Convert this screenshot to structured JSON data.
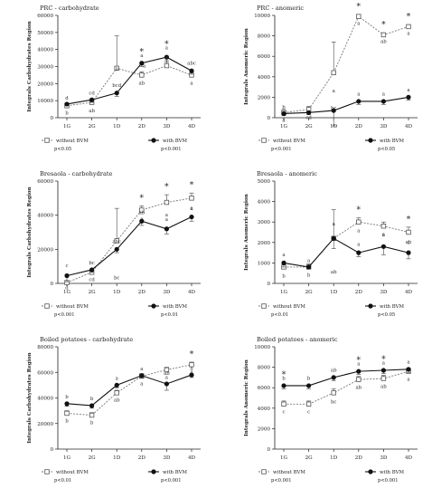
{
  "legend": {
    "without": "without BVM",
    "with": "with BVM"
  },
  "chart_data": [
    {
      "type": "line",
      "title": "PRC - carbohydrate",
      "ylabel": "Integrals Carbohydrates Region",
      "categories": [
        "1G",
        "2G",
        "1D",
        "2D",
        "3D",
        "4D"
      ],
      "ylim": [
        0,
        60000
      ],
      "yticks": [
        0,
        10000,
        20000,
        30000,
        40000,
        50000,
        60000
      ],
      "ytick_labels": [
        "0",
        "10000",
        "20000",
        "30000",
        "40000",
        "50000",
        "60000"
      ],
      "grid": false,
      "series": [
        {
          "name": "without BVM",
          "values": [
            7000,
            9000,
            29000,
            25000,
            30500,
            25000
          ],
          "err": [
            1500,
            2000,
            19000,
            2000,
            3000,
            2000
          ],
          "letters": [
            "b",
            "ab",
            "",
            "ab",
            "",
            "a"
          ]
        },
        {
          "name": "with BVM",
          "values": [
            8000,
            10500,
            14500,
            32000,
            35500,
            27500
          ],
          "err": [
            1000,
            1500,
            2000,
            2000,
            3000,
            2000
          ],
          "letters": [
            "d",
            "cd",
            "bcd",
            "a",
            "a",
            "abc"
          ]
        }
      ],
      "stars": [
        "",
        "",
        "",
        "*",
        "*",
        ""
      ],
      "extra_labels": [
        {
          "text": "a",
          "x": 2,
          "y": 28000
        },
        {
          "text": "a",
          "x": 3.1,
          "y": 29500
        },
        {
          "text": "a",
          "x": 4,
          "y": 34500
        }
      ],
      "sig": {
        "without": "p<0.05",
        "with": "p<0.001"
      }
    },
    {
      "type": "line",
      "title": "PRC - anomeric",
      "ylabel": "Integrals Anomeric Region",
      "categories": [
        "1G",
        "2G",
        "1D",
        "2D",
        "3D",
        "4D"
      ],
      "ylim": [
        0,
        10000
      ],
      "yticks": [
        0,
        2000,
        4000,
        6000,
        8000,
        10000
      ],
      "ytick_labels": [
        "0",
        "2000",
        "4000",
        "6000",
        "8000",
        "10000"
      ],
      "grid": false,
      "series": [
        {
          "name": "without BVM",
          "values": [
            500,
            800,
            4400,
            9900,
            8100,
            8900
          ],
          "err": [
            300,
            300,
            3000,
            200,
            200,
            200
          ],
          "letters": [
            "a",
            "cd",
            "bc",
            "a",
            "ab",
            "a"
          ]
        },
        {
          "name": "with BVM",
          "values": [
            400,
            500,
            700,
            1600,
            1600,
            2000
          ],
          "err": [
            200,
            200,
            1500,
            300,
            300,
            300
          ],
          "letters": [
            "b",
            "",
            "a",
            "a",
            "a",
            "a"
          ]
        }
      ],
      "stars": [
        "",
        "",
        "",
        "*",
        "*",
        "*"
      ],
      "sig": {
        "without": "p<0.001",
        "with": "p<0.05"
      }
    },
    {
      "type": "line",
      "title": "Bresaola - carbohydrate",
      "ylabel": "Integrals Carbohydrates Region",
      "categories": [
        "1G",
        "2G",
        "1D",
        "2D",
        "3D",
        "4D"
      ],
      "ylim": [
        0,
        60000
      ],
      "yticks": [
        0,
        20000,
        40000,
        60000
      ],
      "ytick_labels": [
        "0",
        "20000",
        "40000",
        "60000"
      ],
      "grid": false,
      "series": [
        {
          "name": "without BVM",
          "values": [
            500,
            6500,
            25000,
            43000,
            47500,
            50000
          ],
          "err": [
            300,
            1500,
            19000,
            2500,
            4500,
            3000
          ],
          "letters": [
            "d",
            "cd",
            "bc",
            "a",
            "a",
            "a"
          ]
        },
        {
          "name": "with BVM",
          "values": [
            4500,
            8000,
            20000,
            36500,
            32000,
            39000
          ],
          "err": [
            3500,
            1500,
            2000,
            2500,
            3000,
            2500
          ],
          "letters": [
            "c",
            "bc",
            "abc",
            "ab",
            "a",
            "a"
          ]
        }
      ],
      "stars": [
        "",
        "",
        "",
        "*",
        "*",
        "*"
      ],
      "sig": {
        "without": "p<0.001",
        "with": "p<0.01"
      }
    },
    {
      "type": "line",
      "title": "Bresaola - anomeric",
      "ylabel": "Integrals Anomeric Region",
      "categories": [
        "1G",
        "2G",
        "1D",
        "2D",
        "3D",
        "4D"
      ],
      "ylim": [
        0,
        5000
      ],
      "yticks": [
        0,
        1000,
        2000,
        3000,
        4000,
        5000
      ],
      "ytick_labels": [
        "0",
        "1000",
        "2000",
        "3000",
        "4000",
        "5000"
      ],
      "grid": false,
      "series": [
        {
          "name": "without BVM",
          "values": [
            800,
            800,
            2200,
            3000,
            2800,
            2500
          ],
          "err": [
            200,
            150,
            1400,
            200,
            200,
            250
          ],
          "letters": [
            "b",
            "b",
            "ab",
            "a",
            "a",
            "ab"
          ]
        },
        {
          "name": "with BVM",
          "values": [
            1000,
            800,
            2200,
            1500,
            1800,
            1500
          ],
          "err": [
            200,
            100,
            500,
            200,
            400,
            300
          ],
          "letters": [
            "a",
            "a",
            "a",
            "a",
            "a",
            "a"
          ]
        }
      ],
      "stars": [
        "",
        "",
        "",
        "*",
        "",
        "*"
      ],
      "sig": {
        "without": "p<0.01",
        "with": "p<0.05"
      }
    },
    {
      "type": "line",
      "title": "Boiled potatoes - carbohydrate",
      "ylabel": "Integrals Carbohydrates Region",
      "categories": [
        "1G",
        "2G",
        "1D",
        "2D",
        "3D",
        "4D"
      ],
      "ylim": [
        0,
        80000
      ],
      "yticks": [
        0,
        20000,
        40000,
        60000,
        80000
      ],
      "ytick_labels": [
        "0",
        "20000",
        "40000",
        "60000",
        "80000"
      ],
      "grid": false,
      "series": [
        {
          "name": "without BVM",
          "values": [
            28000,
            26500,
            44000,
            57000,
            62000,
            66000
          ],
          "err": [
            2000,
            2000,
            2000,
            2000,
            2000,
            2000
          ],
          "letters": [
            "b",
            "b",
            "ab",
            "a",
            "a",
            "a"
          ]
        },
        {
          "name": "with BVM",
          "values": [
            35500,
            34000,
            50000,
            57500,
            51000,
            58000
          ],
          "err": [
            2000,
            2000,
            2000,
            2000,
            5000,
            2000
          ],
          "letters": [
            "b",
            "b",
            "a",
            "a",
            "ab",
            "a"
          ]
        }
      ],
      "stars": [
        "",
        "",
        "",
        "",
        "",
        "*"
      ],
      "sig": {
        "without": "p<0.01",
        "with": "p<0.001"
      }
    },
    {
      "type": "line",
      "title": "Boiled potatoes - anomeric",
      "ylabel": "Integrals Anomeric Region",
      "categories": [
        "1G",
        "2G",
        "1D",
        "2D",
        "3D",
        "4D"
      ],
      "ylim": [
        0,
        10000
      ],
      "yticks": [
        0,
        2000,
        4000,
        6000,
        8000,
        10000
      ],
      "ytick_labels": [
        "0",
        "2000",
        "4000",
        "6000",
        "8000",
        "10000"
      ],
      "grid": false,
      "series": [
        {
          "name": "without BVM",
          "values": [
            4400,
            4400,
            5500,
            6800,
            6900,
            7600
          ],
          "err": [
            300,
            300,
            400,
            300,
            300,
            300
          ],
          "letters": [
            "c",
            "c",
            "bc",
            "ab",
            "ab",
            "a"
          ]
        },
        {
          "name": "with BVM",
          "values": [
            6200,
            6200,
            7000,
            7600,
            7700,
            7800
          ],
          "err": [
            300,
            300,
            300,
            300,
            300,
            300
          ],
          "letters": [
            "b",
            "b",
            "ab",
            "a",
            "a",
            "a"
          ]
        }
      ],
      "stars": [
        "*",
        "",
        "",
        "*",
        "*",
        ""
      ],
      "sig": {
        "without": "p<0.001",
        "with": "p<0.001"
      }
    }
  ]
}
